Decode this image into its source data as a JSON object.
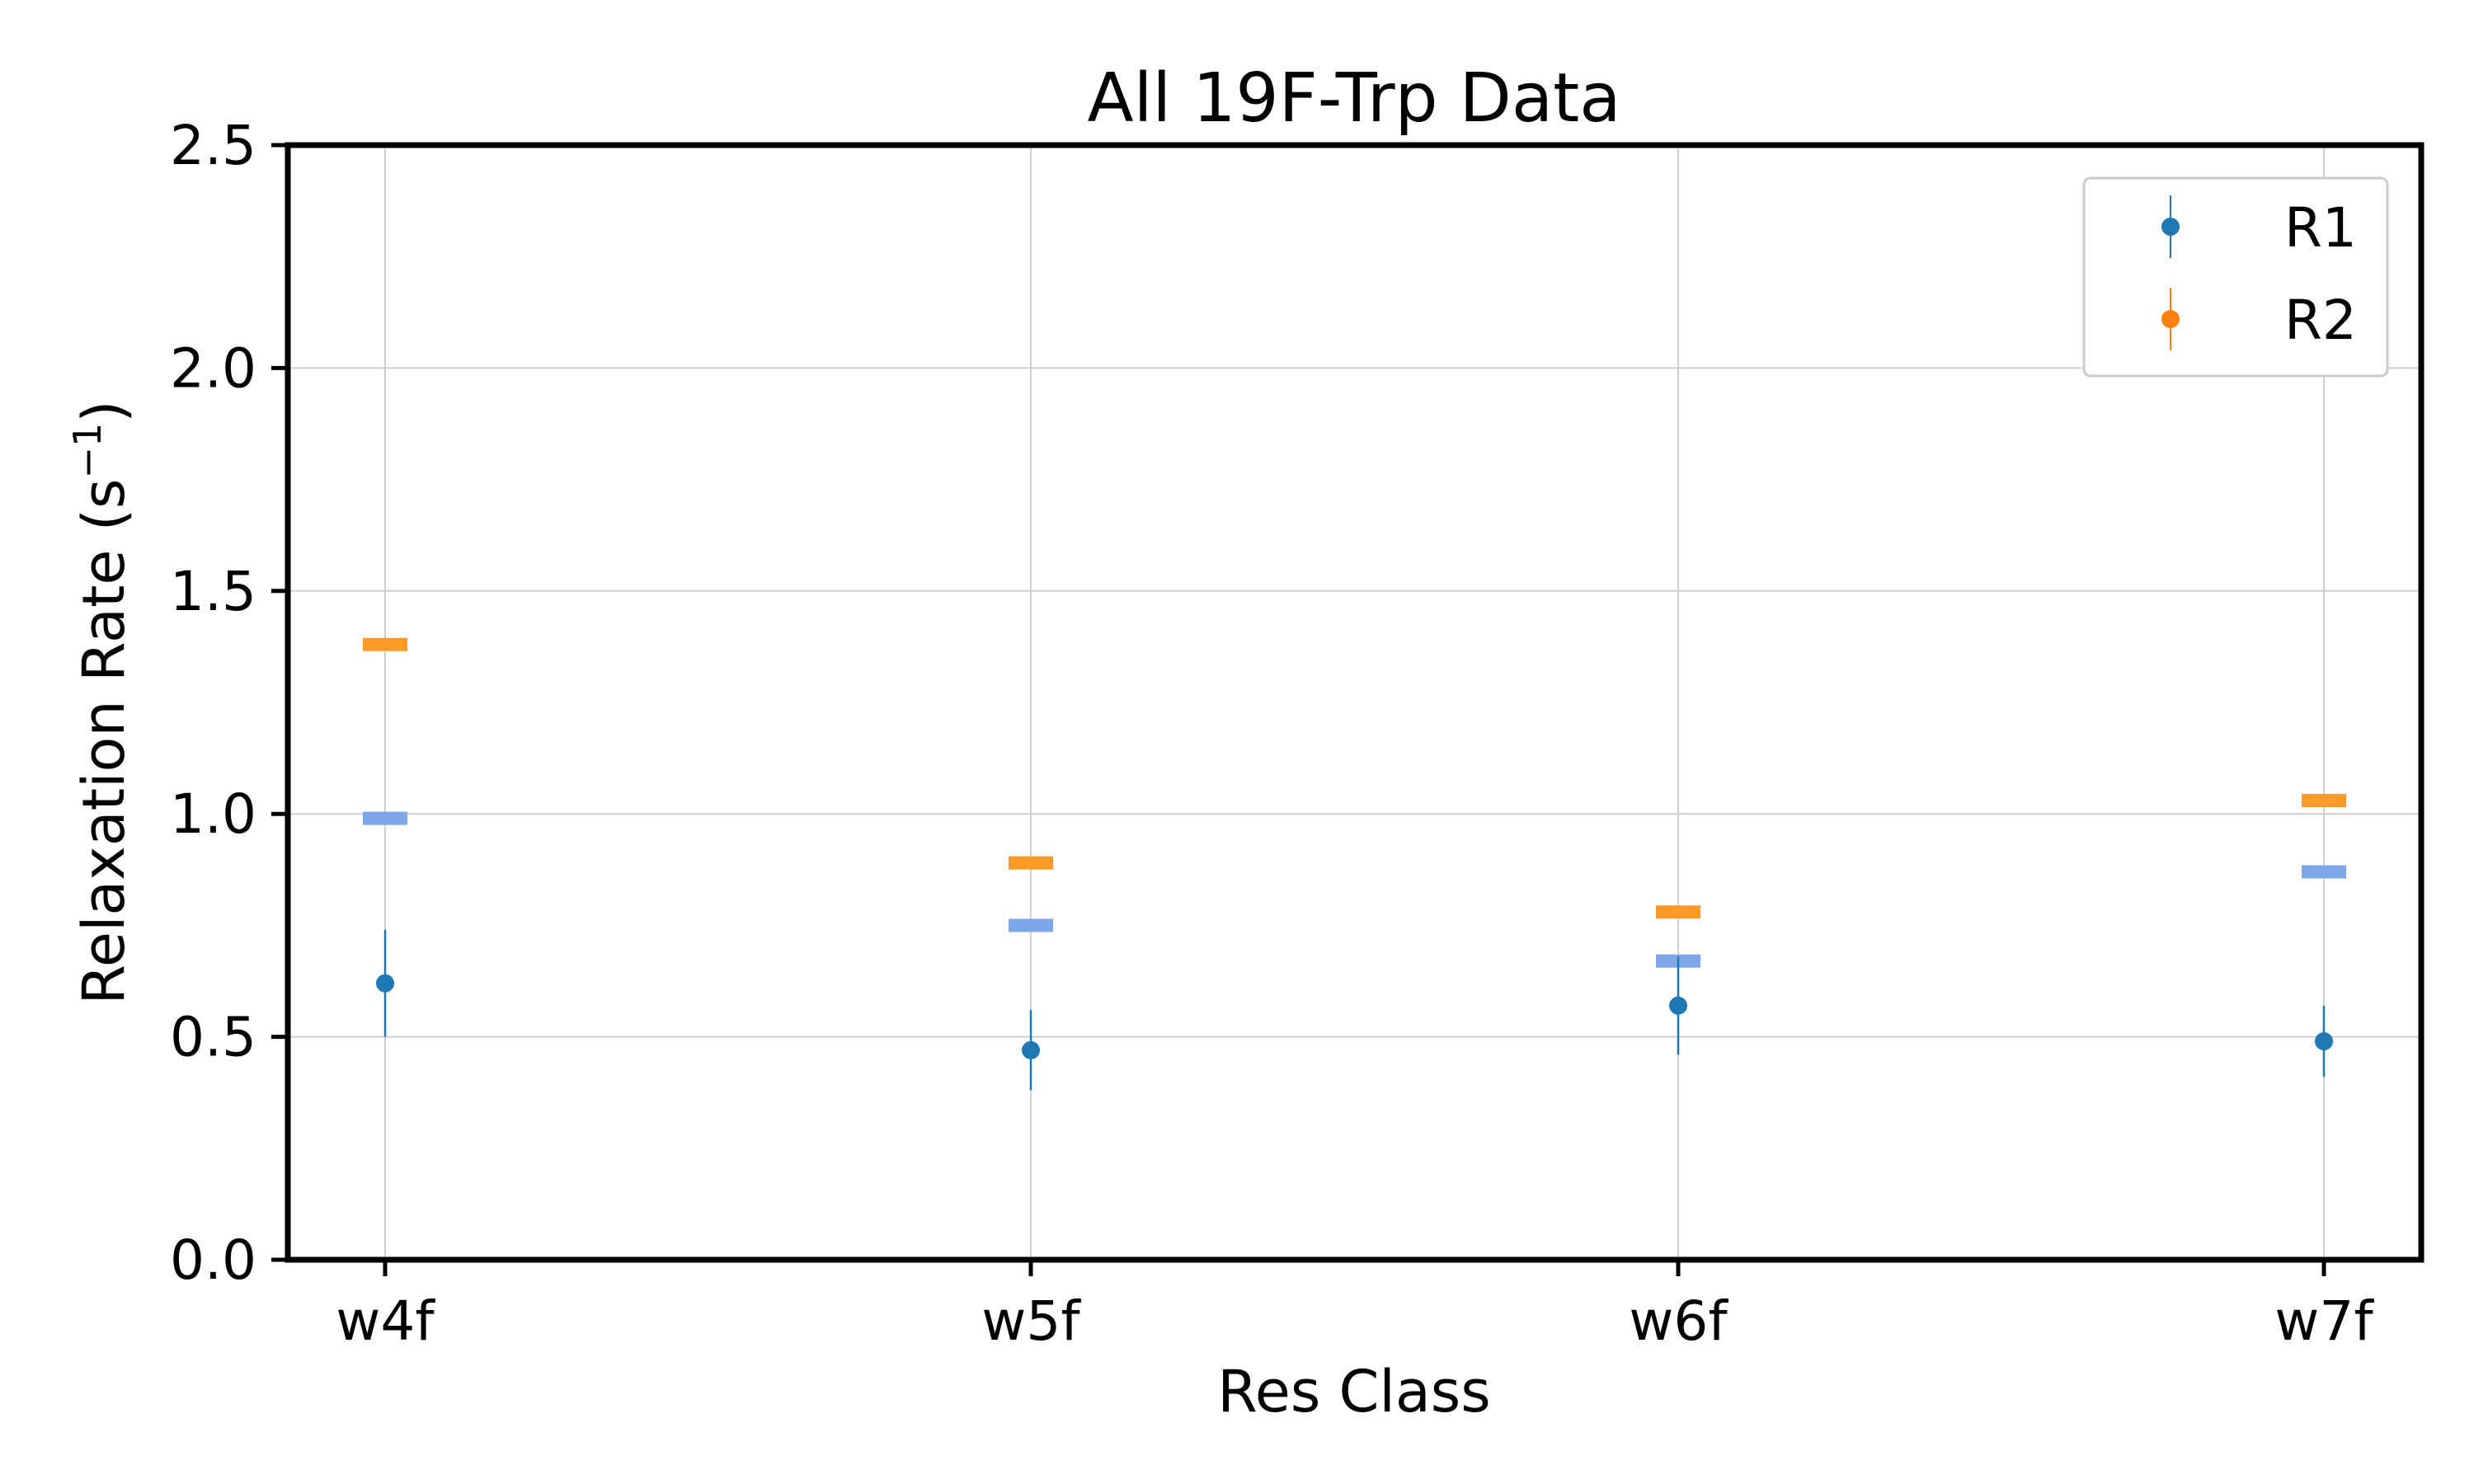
{
  "chart_data": {
    "type": "scatter",
    "title": "All 19F-Trp Data",
    "xlabel": "Res Class",
    "ylabel": "Relaxation Rate (s",
    "ylabel_sup": "−1",
    "ylabel_close": ")",
    "categories": [
      "w4f",
      "w5f",
      "w6f",
      "w7f"
    ],
    "ylim": [
      0,
      2.5
    ],
    "yticks": [
      "0.0",
      "0.5",
      "1.0",
      "1.5",
      "2.0",
      "2.5"
    ],
    "grid": true,
    "legend_position": "top-right",
    "series": [
      {
        "name": "R1",
        "marker": "point-with-errorbar",
        "color": "#1f77b4",
        "values": [
          0.62,
          0.47,
          0.57,
          0.49
        ],
        "error": [
          0.12,
          0.09,
          0.11,
          0.08
        ]
      },
      {
        "name": "R2",
        "marker": "point-with-errorbar",
        "color": "#ff7f0e",
        "values": [],
        "error": []
      }
    ],
    "reference_markers": [
      {
        "marker": "horizontal-dash",
        "color": "#fb9a29",
        "values": [
          1.38,
          0.89,
          0.78,
          1.03
        ]
      },
      {
        "marker": "horizontal-dash",
        "color": "#7ea6e8",
        "values": [
          0.99,
          0.75,
          0.67,
          0.87
        ]
      }
    ]
  }
}
